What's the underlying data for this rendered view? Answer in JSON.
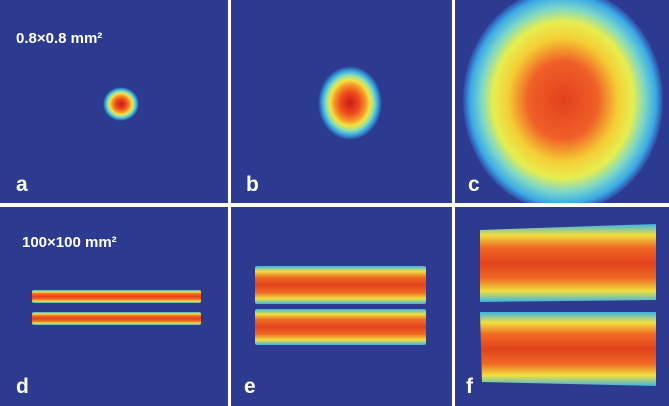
{
  "panels": [
    {
      "label": "a"
    },
    {
      "label": "b"
    },
    {
      "label": "c"
    },
    {
      "label": "d"
    },
    {
      "label": "e"
    },
    {
      "label": "f"
    }
  ],
  "annotations": [
    "0.8×0.8 mm²",
    "100×100 mm²"
  ]
}
